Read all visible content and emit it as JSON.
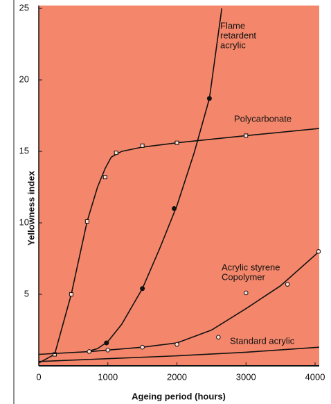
{
  "chart_data": {
    "type": "line",
    "xlabel": "Ageing period (hours)",
    "ylabel": "Yellowness index",
    "xlim": [
      0,
      4060
    ],
    "ylim": [
      0,
      25.2
    ],
    "xticks": [
      0,
      1000,
      2000,
      3000,
      4000
    ],
    "yticks": [
      5,
      10,
      15,
      20,
      25
    ],
    "background": "#f4876b",
    "series": [
      {
        "name": "Flame retardent acrylic",
        "label_lines": [
          "Flame",
          "retardent",
          "acrylic"
        ],
        "color": "#111111",
        "marker": "filled-circle",
        "x": [
          700,
          850,
          1000,
          1200,
          1500,
          1750,
          2000,
          2250,
          2470,
          2650
        ],
        "values": [
          1.0,
          1.2,
          1.7,
          2.9,
          5.4,
          8.2,
          11.2,
          14.9,
          18.7,
          25
        ],
        "points_x": [
          980,
          1500,
          1960,
          2470
        ],
        "points": [
          1.6,
          5.4,
          11.0,
          18.7
        ]
      },
      {
        "name": "Polycarbonate",
        "label_lines": [
          "Polycarbonate"
        ],
        "color": "#111111",
        "marker": "square",
        "x": [
          0,
          230,
          470,
          700,
          850,
          960,
          1050,
          1200,
          1500,
          2000,
          3000,
          4060
        ],
        "values": [
          0.2,
          0.8,
          5.0,
          10.1,
          12.5,
          13.8,
          14.6,
          15.0,
          15.3,
          15.6,
          16.1,
          16.6
        ],
        "points_x": [
          230,
          470,
          700,
          960,
          1120,
          1500,
          2000,
          3000
        ],
        "points": [
          0.8,
          5.0,
          10.1,
          13.2,
          14.9,
          15.4,
          15.6,
          16.1
        ]
      },
      {
        "name": "Acrylic styrene Copolymer",
        "label_lines": [
          "Acrylic styrene",
          "Copolymer"
        ],
        "color": "#111111",
        "marker": "circle",
        "x": [
          0,
          750,
          1000,
          1500,
          2000,
          2500,
          3000,
          3500,
          4060
        ],
        "values": [
          0.8,
          1.0,
          1.1,
          1.3,
          1.6,
          2.5,
          4.0,
          5.6,
          8.0
        ],
        "points_x": [
          730,
          1000,
          1500,
          2000,
          2600,
          3000,
          3600,
          4050
        ],
        "points": [
          1.0,
          1.1,
          1.3,
          1.5,
          2.0,
          5.1,
          5.7,
          8.0
        ]
      },
      {
        "name": "Standard acrylic",
        "label_lines": [
          "Standard acrylic"
        ],
        "color": "#111111",
        "marker": "none",
        "x": [
          0,
          1000,
          2000,
          3000,
          4060
        ],
        "values": [
          0.3,
          0.5,
          0.7,
          0.95,
          1.3
        ],
        "points_x": [],
        "points": []
      }
    ]
  }
}
